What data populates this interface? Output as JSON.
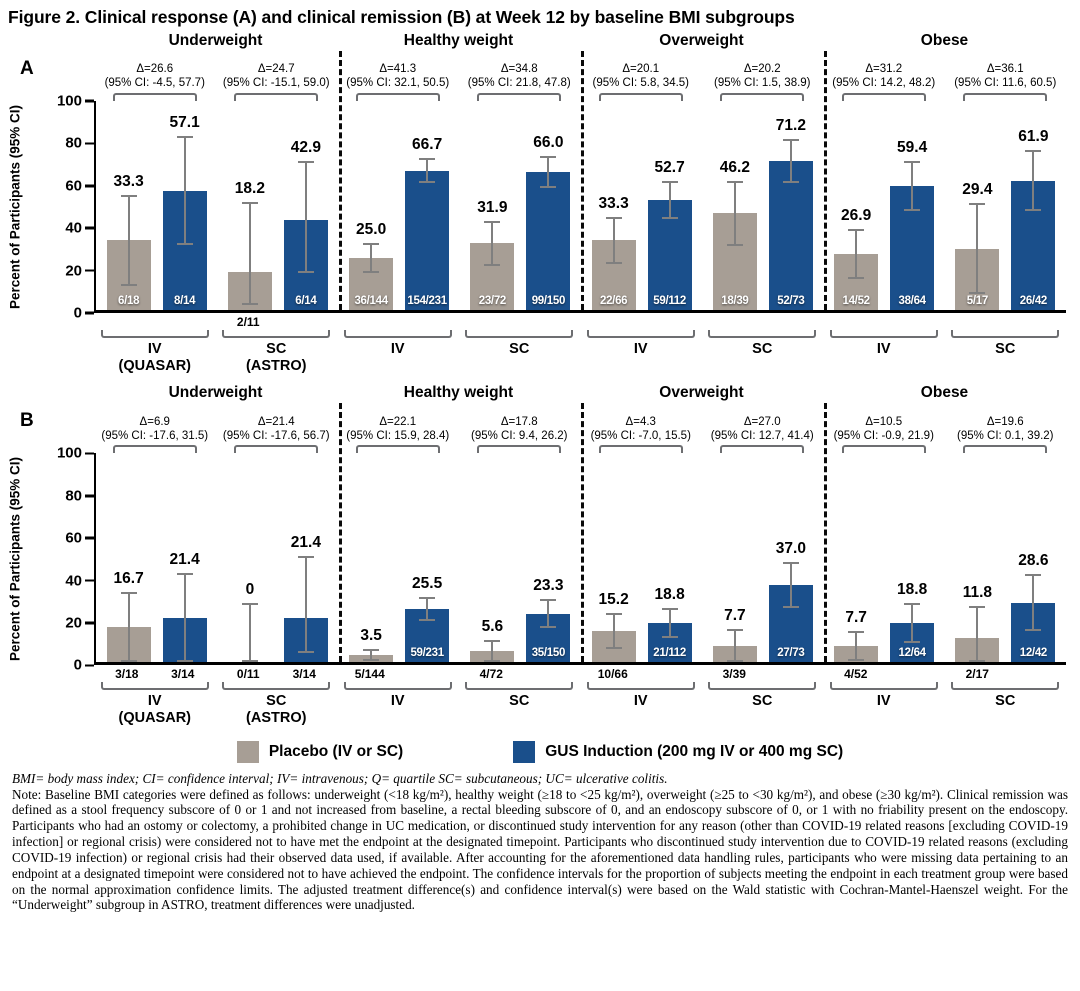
{
  "title": "Figure 2. Clinical response (A) and clinical remission (B) at Week 12 by baseline BMI subgroups",
  "colors": {
    "placebo": "#a79e95",
    "gus": "#1a4f8b",
    "error_bar": "#7f7f7f",
    "bracket": "#6d6e71",
    "axis": "#000000"
  },
  "legend": {
    "placebo": "Placebo (IV or SC)",
    "gus": "GUS Induction (200 mg IV or 400 mg SC)"
  },
  "footnotes": {
    "abbreviations": "BMI= body mass index; CI= confidence interval; IV= intravenous; Q= quartile SC= subcutaneous; UC= ulcerative colitis.",
    "note": "Note: Baseline BMI categories were defined as follows: underweight (<18 kg/m²), healthy weight (≥18 to <25 kg/m²), overweight (≥25 to <30 kg/m²), and obese (≥30 kg/m²). Clinical remission was defined as a stool frequency subscore of 0 or 1 and not increased from baseline, a rectal bleeding subscore of 0, and an endoscopy subscore of 0, or 1 with no friability present on the endoscopy. Participants who had an ostomy or colectomy, a prohibited change in UC medication, or discontinued study intervention for any reason (other than COVID-19 related reasons [excluding COVID-19 infection] or regional crisis) were considered not to have met the endpoint at the designated timepoint. Participants who discontinued study intervention due to COVID-19 related reasons (excluding COVID-19 infection) or regional crisis had their observed data used, if available. After accounting for the aforementioned data handling rules, participants who were missing data pertaining to an endpoint at a designated timepoint were considered not to have achieved the endpoint. The confidence intervals for the proportion of subjects meeting the endpoint in each treatment group were based on the normal approximation confidence limits. The adjusted treatment difference(s) and confidence interval(s) were based on the Wald statistic with Cochran-Mantel-Haenszel weight. For the “Underweight” subgroup in ASTRO, treatment differences were unadjusted."
  },
  "chart_data": [
    {
      "type": "bar",
      "panel_letter": "A",
      "endpoint": "Clinical response",
      "ylabel": "Percent of Participants (95% CI)",
      "ylim": [
        0,
        100
      ],
      "yticks": [
        0,
        20,
        40,
        60,
        80,
        100
      ],
      "series_names": [
        "Placebo (IV or SC)",
        "GUS Induction (200 mg IV or 400 mg SC)"
      ],
      "subgroups": [
        {
          "name": "Underweight",
          "comparisons": [
            {
              "delta": "Δ=26.6",
              "ci": "(95% CI: -4.5, 57.7)",
              "label_lines": [
                "IV",
                "(QUASAR)"
              ],
              "bars": [
                {
                  "group": "placebo",
                  "value": 33.3,
                  "label": "33.3",
                  "n": "6/18",
                  "n_pos": "in",
                  "ci_low": 11.6,
                  "ci_high": 55.1
                },
                {
                  "group": "gus",
                  "value": 57.1,
                  "label": "57.1",
                  "n": "8/14",
                  "n_pos": "in",
                  "ci_low": 31.2,
                  "ci_high": 83.1
                }
              ]
            },
            {
              "delta": "Δ=24.7",
              "ci": "(95% CI: -15.1, 59.0)",
              "label_lines": [
                "SC",
                "(ASTRO)"
              ],
              "bars": [
                {
                  "group": "placebo",
                  "value": 18.2,
                  "label": "18.2",
                  "n": "2/11",
                  "n_pos": "below",
                  "ci_low": 2.3,
                  "ci_high": 51.8
                },
                {
                  "group": "gus",
                  "value": 42.9,
                  "label": "42.9",
                  "n": "6/14",
                  "n_pos": "in",
                  "ci_low": 17.7,
                  "ci_high": 71.1
                }
              ]
            }
          ]
        },
        {
          "name": "Healthy weight",
          "comparisons": [
            {
              "delta": "Δ=41.3",
              "ci": "(95% CI: 32.1, 50.5)",
              "label_lines": [
                "IV"
              ],
              "bars": [
                {
                  "group": "placebo",
                  "value": 25.0,
                  "label": "25.0",
                  "n": "36/144",
                  "n_pos": "in",
                  "ci_low": 17.9,
                  "ci_high": 32.1
                },
                {
                  "group": "gus",
                  "value": 66.7,
                  "label": "66.7",
                  "n": "154/231",
                  "n_pos": "in",
                  "ci_low": 60.6,
                  "ci_high": 72.8
                }
              ]
            },
            {
              "delta": "Δ=34.8",
              "ci": "(95% CI: 21.8, 47.8)",
              "label_lines": [
                "SC"
              ],
              "bars": [
                {
                  "group": "placebo",
                  "value": 31.9,
                  "label": "31.9",
                  "n": "23/72",
                  "n_pos": "in",
                  "ci_low": 21.2,
                  "ci_high": 42.7
                },
                {
                  "group": "gus",
                  "value": 66.0,
                  "label": "66.0",
                  "n": "99/150",
                  "n_pos": "in",
                  "ci_low": 58.4,
                  "ci_high": 73.6
                }
              ]
            }
          ]
        },
        {
          "name": "Overweight",
          "comparisons": [
            {
              "delta": "Δ=20.1",
              "ci": "(95% CI: 5.8, 34.5)",
              "label_lines": [
                "IV"
              ],
              "bars": [
                {
                  "group": "placebo",
                  "value": 33.3,
                  "label": "33.3",
                  "n": "22/66",
                  "n_pos": "in",
                  "ci_low": 21.9,
                  "ci_high": 44.7
                },
                {
                  "group": "gus",
                  "value": 52.7,
                  "label": "52.7",
                  "n": "59/112",
                  "n_pos": "in",
                  "ci_low": 43.4,
                  "ci_high": 61.9
                }
              ]
            },
            {
              "delta": "Δ=20.2",
              "ci": "(95% CI: 1.5, 38.9)",
              "label_lines": [
                "SC"
              ],
              "bars": [
                {
                  "group": "placebo",
                  "value": 46.2,
                  "label": "46.2",
                  "n": "18/39",
                  "n_pos": "in",
                  "ci_low": 30.5,
                  "ci_high": 61.8
                },
                {
                  "group": "gus",
                  "value": 71.2,
                  "label": "71.2",
                  "n": "52/73",
                  "n_pos": "in",
                  "ci_low": 60.8,
                  "ci_high": 81.6
                }
              ]
            }
          ]
        },
        {
          "name": "Obese",
          "comparisons": [
            {
              "delta": "Δ=31.2",
              "ci": "(95% CI: 14.2, 48.2)",
              "label_lines": [
                "IV"
              ],
              "bars": [
                {
                  "group": "placebo",
                  "value": 26.9,
                  "label": "26.9",
                  "n": "14/52",
                  "n_pos": "in",
                  "ci_low": 14.9,
                  "ci_high": 39.0
                },
                {
                  "group": "gus",
                  "value": 59.4,
                  "label": "59.4",
                  "n": "38/64",
                  "n_pos": "in",
                  "ci_low": 47.3,
                  "ci_high": 71.4
                }
              ]
            },
            {
              "delta": "Δ=36.1",
              "ci": "(95% CI: 11.6, 60.5)",
              "label_lines": [
                "SC"
              ],
              "bars": [
                {
                  "group": "placebo",
                  "value": 29.4,
                  "label": "29.4",
                  "n": "5/17",
                  "n_pos": "in",
                  "ci_low": 7.7,
                  "ci_high": 51.1
                },
                {
                  "group": "gus",
                  "value": 61.9,
                  "label": "61.9",
                  "n": "26/42",
                  "n_pos": "in",
                  "ci_low": 47.2,
                  "ci_high": 76.6
                }
              ]
            }
          ]
        }
      ]
    },
    {
      "type": "bar",
      "panel_letter": "B",
      "endpoint": "Clinical remission",
      "ylabel": "Percent of Participants (95% CI)",
      "ylim": [
        0,
        100
      ],
      "yticks": [
        0,
        20,
        40,
        60,
        80,
        100
      ],
      "series_names": [
        "Placebo (IV or SC)",
        "GUS Induction (200 mg IV or 400 mg SC)"
      ],
      "subgroups": [
        {
          "name": "Underweight",
          "comparisons": [
            {
              "delta": "Δ=6.9",
              "ci": "(95% CI: -17.6, 31.5)",
              "label_lines": [
                "IV",
                "(QUASAR)"
              ],
              "bars": [
                {
                  "group": "placebo",
                  "value": 16.7,
                  "label": "16.7",
                  "n": "3/18",
                  "n_pos": "below",
                  "ci_low": 0,
                  "ci_high": 33.9
                },
                {
                  "group": "gus",
                  "value": 21.4,
                  "label": "21.4",
                  "n": "3/14",
                  "n_pos": "below",
                  "ci_low": 0,
                  "ci_high": 42.9
                }
              ]
            },
            {
              "delta": "Δ=21.4",
              "ci": "(95% CI: -17.6, 56.7)",
              "label_lines": [
                "SC",
                "(ASTRO)"
              ],
              "bars": [
                {
                  "group": "placebo",
                  "value": 0,
                  "label": "0",
                  "n": "0/11",
                  "n_pos": "below",
                  "ci_low": 0,
                  "ci_high": 28.5
                },
                {
                  "group": "gus",
                  "value": 21.4,
                  "label": "21.4",
                  "n": "3/14",
                  "n_pos": "below",
                  "ci_low": 4.7,
                  "ci_high": 50.8
                }
              ]
            }
          ]
        },
        {
          "name": "Healthy weight",
          "comparisons": [
            {
              "delta": "Δ=22.1",
              "ci": "(95% CI: 15.9, 28.4)",
              "label_lines": [
                "IV"
              ],
              "bars": [
                {
                  "group": "placebo",
                  "value": 3.5,
                  "label": "3.5",
                  "n": "5/144",
                  "n_pos": "below",
                  "ci_low": 0.5,
                  "ci_high": 6.5
                },
                {
                  "group": "gus",
                  "value": 25.5,
                  "label": "25.5",
                  "n": "59/231",
                  "n_pos": "in",
                  "ci_low": 19.9,
                  "ci_high": 31.2
                }
              ]
            },
            {
              "delta": "Δ=17.8",
              "ci": "(95% CI: 9.4, 26.2)",
              "label_lines": [
                "SC"
              ],
              "bars": [
                {
                  "group": "placebo",
                  "value": 5.6,
                  "label": "5.6",
                  "n": "4/72",
                  "n_pos": "below",
                  "ci_low": 0.3,
                  "ci_high": 10.9
                },
                {
                  "group": "gus",
                  "value": 23.3,
                  "label": "23.3",
                  "n": "35/150",
                  "n_pos": "in",
                  "ci_low": 16.6,
                  "ci_high": 30.1
                }
              ]
            }
          ]
        },
        {
          "name": "Overweight",
          "comparisons": [
            {
              "delta": "Δ=4.3",
              "ci": "(95% CI: -7.0, 15.5)",
              "label_lines": [
                "IV"
              ],
              "bars": [
                {
                  "group": "placebo",
                  "value": 15.2,
                  "label": "15.2",
                  "n": "10/66",
                  "n_pos": "below",
                  "ci_low": 6.5,
                  "ci_high": 23.8
                },
                {
                  "group": "gus",
                  "value": 18.8,
                  "label": "18.8",
                  "n": "21/112",
                  "n_pos": "in",
                  "ci_low": 11.5,
                  "ci_high": 26.0
                }
              ]
            },
            {
              "delta": "Δ=27.0",
              "ci": "(95% CI: 12.7, 41.4)",
              "label_lines": [
                "SC"
              ],
              "bars": [
                {
                  "group": "placebo",
                  "value": 7.7,
                  "label": "7.7",
                  "n": "3/39",
                  "n_pos": "below",
                  "ci_low": 0,
                  "ci_high": 16.1
                },
                {
                  "group": "gus",
                  "value": 37.0,
                  "label": "37.0",
                  "n": "27/73",
                  "n_pos": "in",
                  "ci_low": 25.9,
                  "ci_high": 48.1
                }
              ]
            }
          ]
        },
        {
          "name": "Obese",
          "comparisons": [
            {
              "delta": "Δ=10.5",
              "ci": "(95% CI: -0.9, 21.9)",
              "label_lines": [
                "IV"
              ],
              "bars": [
                {
                  "group": "placebo",
                  "value": 7.7,
                  "label": "7.7",
                  "n": "4/52",
                  "n_pos": "below",
                  "ci_low": 0.5,
                  "ci_high": 14.9
                },
                {
                  "group": "gus",
                  "value": 18.8,
                  "label": "18.8",
                  "n": "12/64",
                  "n_pos": "in",
                  "ci_low": 9.2,
                  "ci_high": 28.3
                }
              ]
            },
            {
              "delta": "Δ=19.6",
              "ci": "(95% CI: 0.1, 39.2)",
              "label_lines": [
                "SC"
              ],
              "bars": [
                {
                  "group": "placebo",
                  "value": 11.8,
                  "label": "11.8",
                  "n": "2/17",
                  "n_pos": "below",
                  "ci_low": 0,
                  "ci_high": 27.1
                },
                {
                  "group": "gus",
                  "value": 28.6,
                  "label": "28.6",
                  "n": "12/42",
                  "n_pos": "in",
                  "ci_low": 14.9,
                  "ci_high": 42.2
                }
              ]
            }
          ]
        }
      ]
    }
  ]
}
